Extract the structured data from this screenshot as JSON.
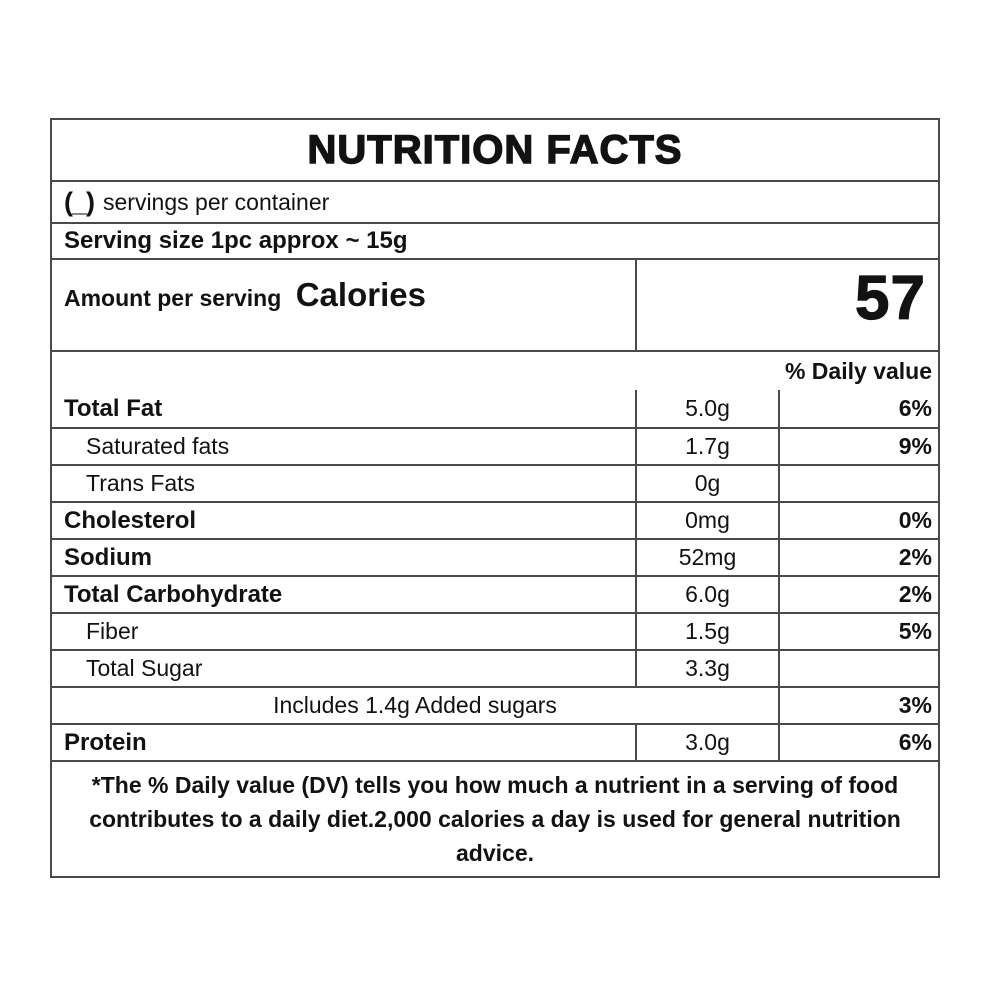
{
  "colors": {
    "background": "#ffffff",
    "text": "#121212",
    "border": "#4a4a4a"
  },
  "label": {
    "title": "NUTRITION FACTS",
    "servings": {
      "prefix": "(_)",
      "text": "servings per container"
    },
    "serving_size": "Serving size 1pc approx ~ 15g",
    "calories": {
      "amount_per_serving_label": "Amount per serving",
      "calories_label": "Calories",
      "value": "57"
    },
    "daily_value_header": "% Daily value",
    "rows": [
      {
        "name": "Total Fat",
        "amount": "5.0g",
        "dv": "6%",
        "bold": true,
        "indent": false,
        "merged": false
      },
      {
        "name": "Saturated fats",
        "amount": "1.7g",
        "dv": "9%",
        "bold": false,
        "indent": true,
        "merged": false
      },
      {
        "name": "Trans Fats",
        "amount": "0g",
        "dv": "",
        "bold": false,
        "indent": true,
        "merged": false
      },
      {
        "name": "Cholesterol",
        "amount": "0mg",
        "dv": "0%",
        "bold": true,
        "indent": false,
        "merged": false
      },
      {
        "name": "Sodium",
        "amount": "52mg",
        "dv": "2%",
        "bold": true,
        "indent": false,
        "merged": false
      },
      {
        "name": "Total Carbohydrate",
        "amount": "6.0g",
        "dv": "2%",
        "bold": true,
        "indent": false,
        "merged": false
      },
      {
        "name": "Fiber",
        "amount": "1.5g",
        "dv": "5%",
        "bold": false,
        "indent": true,
        "merged": false
      },
      {
        "name": "Total Sugar",
        "amount": "3.3g",
        "dv": "",
        "bold": false,
        "indent": true,
        "merged": false
      },
      {
        "name": "Includes 1.4g Added sugars",
        "amount": "",
        "dv": "3%",
        "bold": false,
        "indent": false,
        "merged": true
      },
      {
        "name": "Protein",
        "amount": "3.0g",
        "dv": "6%",
        "bold": true,
        "indent": false,
        "merged": false
      }
    ],
    "footnote": "*The % Daily value (DV) tells you how much a nutrient in a serving of food contributes to a daily diet.2,000 calories a day is used for general nutrition advice."
  }
}
